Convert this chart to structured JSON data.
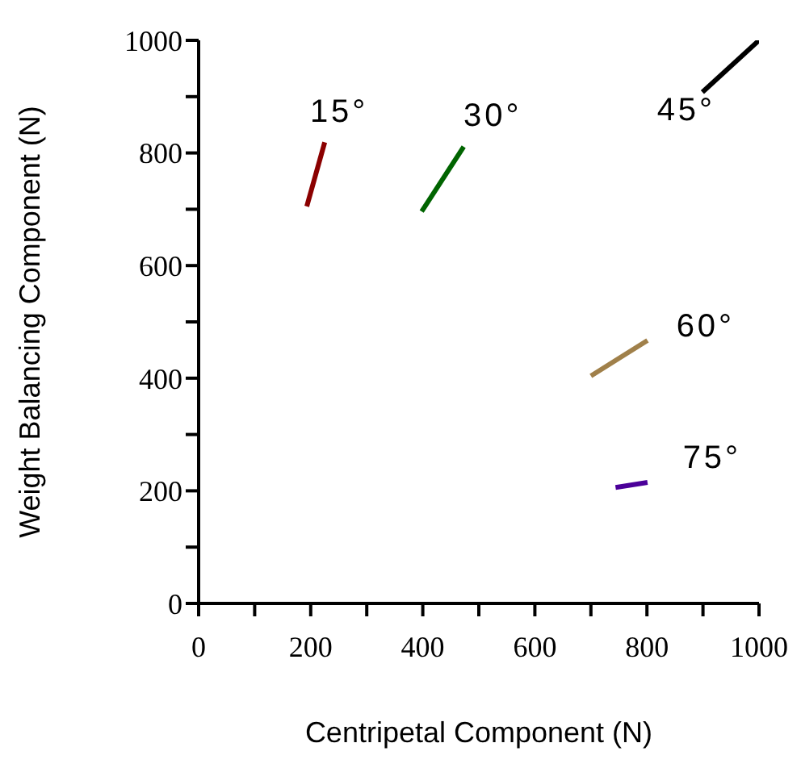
{
  "chart_data": {
    "type": "line",
    "xlabel": "Centripetal Component (N)",
    "ylabel": "Weight Balancing Component (N)",
    "xlim": [
      0,
      1000
    ],
    "ylim": [
      0,
      1000
    ],
    "xticks": [
      0,
      {
        "value": 100,
        "label": null
      },
      200,
      {
        "value": 300,
        "label": null
      },
      400,
      {
        "value": 500,
        "label": null
      },
      600,
      {
        "value": 700,
        "label": null
      },
      800,
      {
        "value": 900,
        "label": null
      },
      1000
    ],
    "yticks": [
      0,
      {
        "value": 100,
        "label": null
      },
      200,
      {
        "value": 300,
        "label": null
      },
      400,
      {
        "value": 500,
        "label": null
      },
      600,
      {
        "value": 700,
        "label": null
      },
      800,
      {
        "value": 900,
        "label": null
      },
      1000
    ],
    "marker": "none",
    "line_style": "solid",
    "grid": false,
    "legend": false,
    "series": [
      {
        "name": "15°",
        "color": "#8b0000",
        "x": [
          193,
          225
        ],
        "values": [
          705,
          819
        ]
      },
      {
        "name": "30°",
        "color": "#006400",
        "x": [
          398,
          473
        ],
        "values": [
          696,
          811
        ]
      },
      {
        "name": "45°",
        "color": "#000000",
        "x": [
          899,
          1000
        ],
        "values": [
          908,
          1000
        ]
      },
      {
        "name": "60°",
        "color": "#a0804a",
        "x": [
          700,
          801
        ],
        "values": [
          404,
          467
        ]
      },
      {
        "name": "75°",
        "color": "#4b0099",
        "x": [
          744,
          801
        ],
        "values": [
          206,
          215
        ]
      }
    ]
  }
}
